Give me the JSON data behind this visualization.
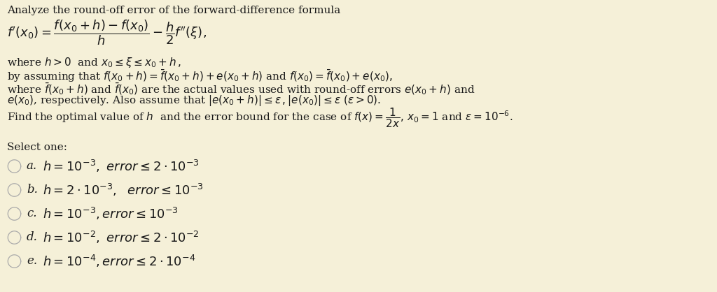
{
  "background_color": "#f5f0d8",
  "text_color": "#1a1a1a",
  "circle_color": "#aaaaaa",
  "body_fontsize": 11.0,
  "formula_fontsize": 13.0,
  "option_fontsize": 13.0,
  "title": "Analyze the round-off error of the forward-difference formula",
  "line1_formula": "$f'(x_0) = \\dfrac{f(x_0+h)-f(x_0)}{h} - \\dfrac{h}{2}f''(\\xi),$",
  "line2": "where $h > 0$  and $x_0 \\leq \\xi \\leq x_0 + h\\,,$",
  "line3": "by assuming that $f(x_0 + h) = \\bar{f}(x_0 + h) + e(x_0 + h)$ and $f(x_0) = \\bar{f}(x_0) + e(x_0),$",
  "line4": "where $\\bar{f}(x_0 + h)$ and $\\bar{f}(x_0)$ are the actual values used with round-off errors $e(x_0 + h)$ and",
  "line5": "$e(x_0)$, respectively. Also assume that $|e(x_0 + h)| \\leq \\epsilon\\,,|e(x_0)| \\leq \\epsilon$ $(\\epsilon > 0).$",
  "line6": "Find the optimal value of $h$  and the error bound for the case of $f(x) = \\dfrac{1}{2x},\\, x_0 = 1$ and $\\epsilon = 10^{-6}$.",
  "select_label": "Select one:",
  "option_labels": [
    "a.",
    "b.",
    "c.",
    "d.",
    "e."
  ],
  "option_texts": [
    "$h = 10^{-3},\\ error \\leq 2 \\cdot 10^{-3}$",
    "$h = 2 \\cdot 10^{-3},\\ \\ error \\leq 10^{-3}$",
    "$h = 10^{-3},error \\leq 10^{-3}$",
    "$h = 10^{-2},\\ error \\leq 2 \\cdot 10^{-2}$",
    "$h = 10^{-4},error \\leq 2 \\cdot 10^{-4}$"
  ]
}
